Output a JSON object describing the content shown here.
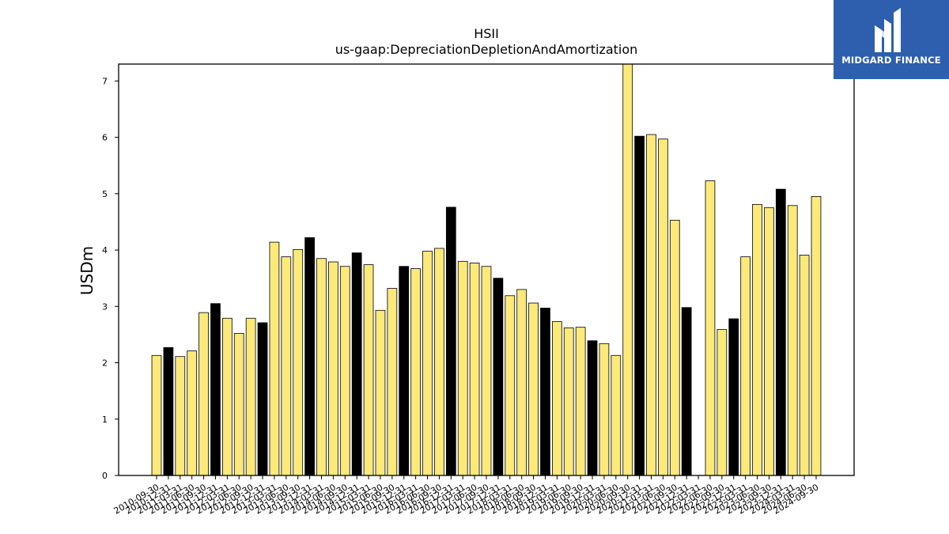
{
  "brand": {
    "name": "MIDGARD FINANCE",
    "bg_color": "#2e5fae"
  },
  "chart_data": {
    "type": "bar",
    "title": "HSII",
    "subtitle": "us-gaap:DepreciationDepletionAndAmortization",
    "xlabel": "",
    "ylabel": "USDm",
    "ylim": [
      0,
      7.3
    ],
    "yticks": [
      0,
      1,
      2,
      3,
      4,
      5,
      6,
      7
    ],
    "grid": false,
    "colors": {
      "regular": "#fbe97a",
      "highlight": "#000000",
      "edge": "#000000"
    },
    "categories": [
      "2010-09-30",
      "2010-12-31",
      "2011-03-31",
      "2011-06-30",
      "2011-09-30",
      "2011-12-31",
      "2012-03-31",
      "2012-06-30",
      "2012-09-30",
      "2012-12-31",
      "2013-03-31",
      "2013-06-30",
      "2013-09-30",
      "2013-12-31",
      "2014-03-31",
      "2014-06-30",
      "2014-09-30",
      "2014-12-31",
      "2015-03-31",
      "2015-06-30",
      "2015-09-30",
      "2015-12-31",
      "2016-03-31",
      "2016-06-30",
      "2016-09-30",
      "2016-12-31",
      "2017-03-31",
      "2017-06-30",
      "2017-09-30",
      "2017-12-31",
      "2018-03-31",
      "2018-06-30",
      "2018-09-30",
      "2018-12-31",
      "2019-03-31",
      "2019-06-30",
      "2019-09-30",
      "2019-12-31",
      "2020-03-31",
      "2020-06-30",
      "2020-09-30",
      "2020-12-31",
      "2021-03-31",
      "2021-06-30",
      "2021-09-30",
      "2021-12-31",
      "2022-03-31",
      "2022-06-30",
      "2022-09-30",
      "2022-12-31",
      "2023-03-31",
      "2023-06-30",
      "2023-09-30",
      "2023-12-31",
      "2024-03-31",
      "2024-06-30",
      "2024-09-30"
    ],
    "values": [
      2.13,
      2.27,
      2.11,
      2.21,
      2.89,
      3.05,
      2.79,
      2.52,
      2.79,
      2.71,
      4.14,
      3.88,
      4.01,
      4.22,
      3.85,
      3.79,
      3.71,
      3.95,
      3.74,
      2.93,
      3.32,
      3.71,
      3.67,
      3.98,
      4.03,
      4.76,
      3.8,
      3.77,
      3.71,
      3.5,
      3.19,
      3.3,
      3.06,
      2.97,
      2.73,
      2.62,
      2.63,
      2.39,
      2.34,
      2.13,
      7.3,
      6.02,
      6.05,
      5.97,
      4.53,
      2.98,
      null,
      5.23,
      2.59,
      2.78,
      3.88,
      4.81,
      4.75,
      5.08,
      4.79,
      3.91,
      4.95
    ],
    "highlight": [
      false,
      true,
      false,
      false,
      false,
      true,
      false,
      false,
      false,
      true,
      false,
      false,
      false,
      true,
      false,
      false,
      false,
      true,
      false,
      false,
      false,
      true,
      false,
      false,
      false,
      true,
      false,
      false,
      false,
      true,
      false,
      false,
      false,
      true,
      false,
      false,
      false,
      true,
      false,
      false,
      false,
      true,
      false,
      false,
      false,
      true,
      false,
      false,
      false,
      true,
      false,
      false,
      false,
      true,
      false,
      false,
      false
    ]
  }
}
